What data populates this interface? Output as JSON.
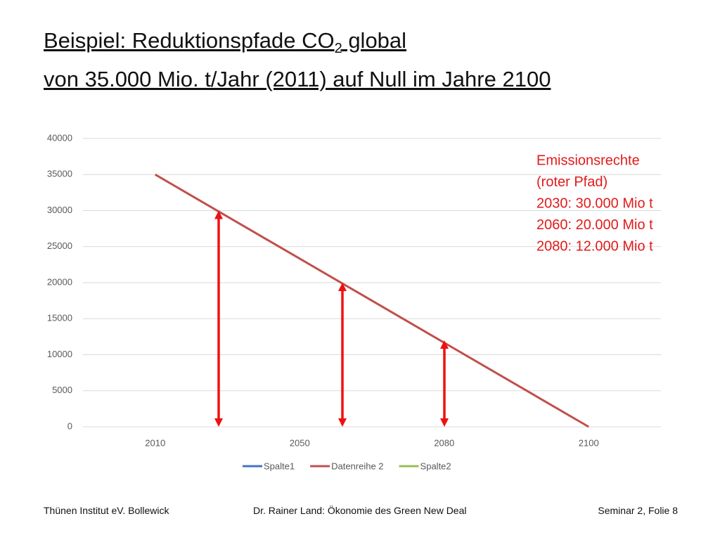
{
  "title": {
    "line1_before": "Beispiel: Reduktionspfade CO",
    "line1_sub": "2",
    "line1_after": " global",
    "line2": "von 35.000 Mio. t/Jahr (2011) auf Null im Jahre 2100"
  },
  "chart_data": {
    "type": "line",
    "categories": [
      "2010",
      "2050",
      "2080",
      "2100"
    ],
    "series": [
      {
        "name": "Spalte1",
        "color": "#4472c4",
        "values": [
          null,
          null,
          null,
          null
        ]
      },
      {
        "name": "Datenreihe 2",
        "color": "#c0504d",
        "values": [
          35000,
          23333,
          11667,
          0
        ]
      },
      {
        "name": "Spalte2",
        "color": "#9bbb59",
        "values": [
          null,
          null,
          null,
          null
        ]
      }
    ],
    "ylim": [
      0,
      40000
    ],
    "yticks": [
      0,
      5000,
      10000,
      15000,
      20000,
      25000,
      30000,
      35000,
      40000
    ],
    "grid": true,
    "legend": "bottom",
    "arrows": {
      "color": "#ee1111",
      "values": [
        30000,
        20000,
        12000
      ]
    },
    "annotation": [
      "Emissionsrechte",
      "(roter Pfad)",
      "2030: 30.000 Mio t",
      "2060: 20.000 Mio t",
      "2080: 12.000 Mio t"
    ]
  },
  "footer": {
    "left": "Thünen Institut eV. Bollewick",
    "center": "Dr. Rainer Land: Ökonomie des Green New Deal",
    "right": "Seminar 2, Folie 8"
  }
}
